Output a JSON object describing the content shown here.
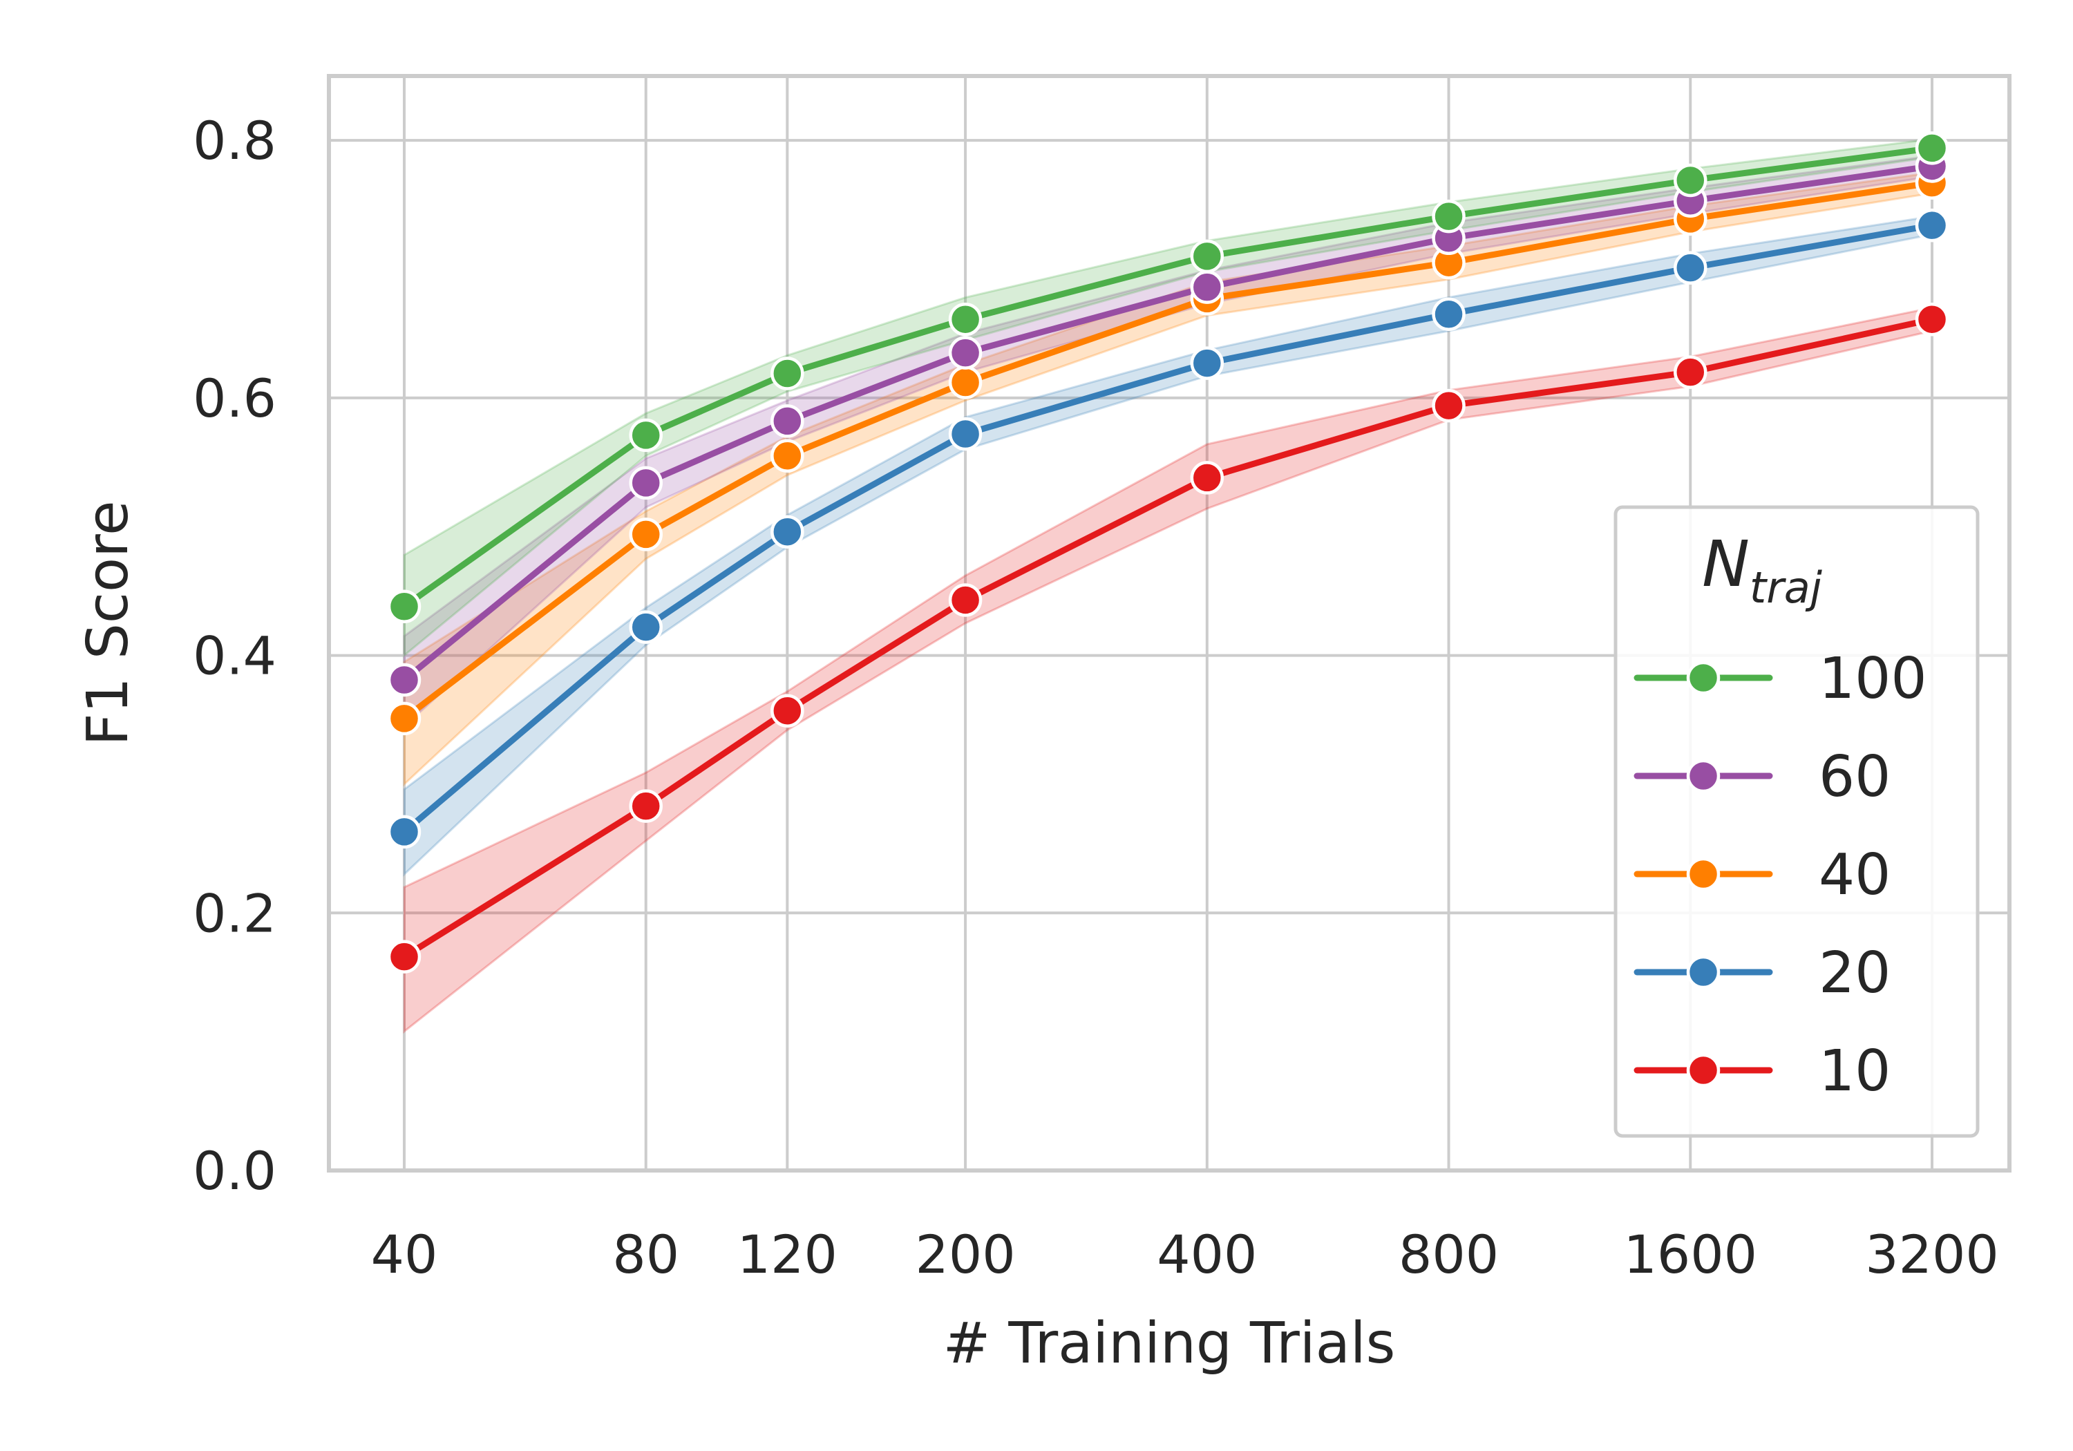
{
  "chart_data": {
    "type": "line",
    "title": "",
    "xlabel": "# Training Trials",
    "ylabel": "F1 Score",
    "x": [
      40,
      80,
      120,
      200,
      400,
      800,
      1600,
      3200
    ],
    "x_tick_labels": [
      "40",
      "80",
      "120",
      "200",
      "400",
      "800",
      "1600",
      "3200"
    ],
    "x_scale": "categorical-positioned",
    "x_positions": [
      0,
      1,
      1.585,
      2.322,
      3.322,
      4.322,
      5.322,
      6.322
    ],
    "y_ticks": [
      0.0,
      0.2,
      0.4,
      0.6,
      0.8
    ],
    "y_tick_labels": [
      "0.0",
      "0.2",
      "0.4",
      "0.6",
      "0.8"
    ],
    "ylim": [
      0.0,
      0.85
    ],
    "grid": true,
    "legend": {
      "title_main": "N",
      "title_sub": "traj",
      "position": "lower-right"
    },
    "series": [
      {
        "name": "100",
        "color": "#4daf4a",
        "values": [
          0.438,
          0.571,
          0.619,
          0.661,
          0.71,
          0.741,
          0.769,
          0.794
        ],
        "ci_low": [
          0.4,
          0.555,
          0.605,
          0.645,
          0.698,
          0.73,
          0.76,
          0.787
        ],
        "ci_high": [
          0.478,
          0.588,
          0.633,
          0.678,
          0.722,
          0.752,
          0.778,
          0.801
        ]
      },
      {
        "name": "60",
        "color": "#984ea3",
        "values": [
          0.381,
          0.534,
          0.582,
          0.635,
          0.686,
          0.724,
          0.753,
          0.78
        ],
        "ci_low": [
          0.345,
          0.515,
          0.566,
          0.62,
          0.673,
          0.712,
          0.743,
          0.772
        ],
        "ci_high": [
          0.415,
          0.553,
          0.598,
          0.65,
          0.699,
          0.736,
          0.763,
          0.788
        ]
      },
      {
        "name": "40",
        "color": "#ff7f00",
        "values": [
          0.351,
          0.494,
          0.555,
          0.612,
          0.677,
          0.705,
          0.739,
          0.767
        ],
        "ci_low": [
          0.3,
          0.475,
          0.54,
          0.598,
          0.664,
          0.692,
          0.729,
          0.759
        ],
        "ci_high": [
          0.395,
          0.512,
          0.57,
          0.626,
          0.69,
          0.718,
          0.749,
          0.775
        ]
      },
      {
        "name": "20",
        "color": "#377eb8",
        "values": [
          0.263,
          0.422,
          0.496,
          0.572,
          0.627,
          0.665,
          0.701,
          0.734
        ],
        "ci_low": [
          0.23,
          0.408,
          0.484,
          0.56,
          0.617,
          0.652,
          0.69,
          0.727
        ],
        "ci_high": [
          0.296,
          0.437,
          0.509,
          0.585,
          0.637,
          0.678,
          0.712,
          0.741
        ]
      },
      {
        "name": "10",
        "color": "#e41a1c",
        "values": [
          0.166,
          0.283,
          0.357,
          0.443,
          0.538,
          0.594,
          0.62,
          0.661
        ],
        "ci_low": [
          0.108,
          0.256,
          0.342,
          0.425,
          0.514,
          0.583,
          0.609,
          0.652
        ],
        "ci_high": [
          0.22,
          0.309,
          0.372,
          0.462,
          0.564,
          0.606,
          0.632,
          0.67
        ]
      }
    ]
  }
}
